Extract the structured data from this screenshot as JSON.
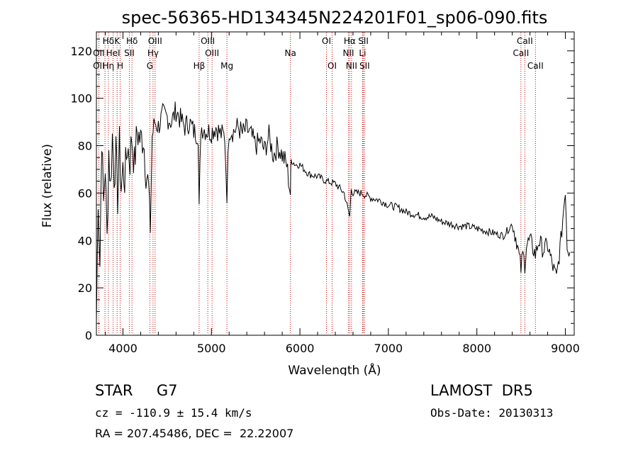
{
  "chart_data": {
    "type": "line",
    "title": "spec-56365-HD134345N224201F01_sp06-090.fits",
    "xlabel": "Wavelength (Å)",
    "ylabel": "Flux (relative)",
    "xlim": [
      3700,
      9100
    ],
    "ylim": [
      0,
      128
    ],
    "xticks": [
      4000,
      5000,
      6000,
      7000,
      8000,
      9000
    ],
    "yticks": [
      0,
      20,
      40,
      60,
      80,
      100,
      120
    ],
    "grid": false,
    "series": [
      {
        "x": [
          3700,
          3720,
          3740,
          3760,
          3780,
          3800,
          3820,
          3840,
          3860,
          3880,
          3900,
          3920,
          3940,
          3960,
          3980,
          4000,
          4020,
          4050,
          4080,
          4100,
          4130,
          4160,
          4200,
          4230,
          4260,
          4290,
          4310,
          4330,
          4360,
          4400,
          4450,
          4500,
          4550,
          4600,
          4650,
          4700,
          4750,
          4800,
          4850,
          4861,
          4880,
          4920,
          4960,
          5000,
          5050,
          5100,
          5150,
          5175,
          5200,
          5250,
          5300,
          5350,
          5400,
          5450,
          5500,
          5550,
          5600,
          5650,
          5700,
          5750,
          5800,
          5850,
          5893,
          5900,
          5950,
          6000,
          6100,
          6200,
          6300,
          6400,
          6500,
          6563,
          6580,
          6600,
          6700,
          6800,
          6900,
          7000,
          7100,
          7200,
          7300,
          7400,
          7500,
          7600,
          7700,
          7800,
          7900,
          8000,
          8100,
          8200,
          8300,
          8400,
          8450,
          8498,
          8520,
          8542,
          8560,
          8600,
          8662,
          8700,
          8750,
          8800,
          8850,
          8900,
          8950,
          9000,
          9020,
          9050
        ],
        "y": [
          5,
          60,
          30,
          85,
          55,
          72,
          40,
          78,
          62,
          84,
          68,
          76,
          58,
          80,
          62,
          70,
          66,
          80,
          74,
          84,
          72,
          86,
          82,
          84,
          70,
          62,
          45,
          84,
          90,
          88,
          93,
          92,
          90,
          95,
          91,
          88,
          90,
          86,
          85,
          52,
          88,
          87,
          86,
          86,
          88,
          85,
          84,
          60,
          87,
          86,
          88,
          85,
          87,
          84,
          80,
          82,
          78,
          84,
          76,
          80,
          76,
          72,
          60,
          74,
          72,
          72,
          68,
          67,
          65,
          64,
          60,
          50,
          62,
          60,
          60,
          58,
          57,
          55,
          54,
          52,
          51,
          50,
          50,
          48,
          47,
          46,
          46,
          45,
          44,
          43,
          42,
          47,
          40,
          28,
          34,
          30,
          38,
          40,
          34,
          40,
          36,
          38,
          30,
          24,
          40,
          62,
          38,
          35
        ]
      }
    ],
    "line_labels": [
      {
        "name": "Hδ",
        "x": 3835,
        "row": 0
      },
      {
        "name": "K",
        "x": 3934,
        "row": 0
      },
      {
        "name": "Hδ",
        "x": 4102,
        "row": 0
      },
      {
        "name": "OIII",
        "x": 4363,
        "row": 0
      },
      {
        "name": "OIII",
        "x": 4959,
        "row": 0
      },
      {
        "name": "OI",
        "x": 6300,
        "row": 0
      },
      {
        "name": "Hα",
        "x": 6563,
        "row": 0
      },
      {
        "name": "SII",
        "x": 6717,
        "row": 0
      },
      {
        "name": "CaII",
        "x": 8542,
        "row": 0
      },
      {
        "name": "OII",
        "x": 3727,
        "row": 1
      },
      {
        "name": "HeI",
        "x": 3889,
        "row": 1
      },
      {
        "name": "SII",
        "x": 4072,
        "row": 1
      },
      {
        "name": "Hγ",
        "x": 4340,
        "row": 1
      },
      {
        "name": "OIII",
        "x": 5007,
        "row": 1
      },
      {
        "name": "Na",
        "x": 5893,
        "row": 1
      },
      {
        "name": "NII",
        "x": 6548,
        "row": 1
      },
      {
        "name": "Li",
        "x": 6708,
        "row": 1
      },
      {
        "name": "CaII",
        "x": 8498,
        "row": 1
      },
      {
        "name": "OII",
        "x": 3727,
        "row": 2
      },
      {
        "name": "Hη",
        "x": 3835,
        "row": 2
      },
      {
        "name": "H",
        "x": 3969,
        "row": 2
      },
      {
        "name": "G",
        "x": 4304,
        "row": 2
      },
      {
        "name": "Hβ",
        "x": 4861,
        "row": 2
      },
      {
        "name": "Mg",
        "x": 5175,
        "row": 2
      },
      {
        "name": "OI",
        "x": 6364,
        "row": 2
      },
      {
        "name": "NII",
        "x": 6583,
        "row": 2
      },
      {
        "name": "SII",
        "x": 6731,
        "row": 2
      },
      {
        "name": "CaII",
        "x": 8662,
        "row": 2
      }
    ],
    "markers": [
      3727,
      3797,
      3835,
      3889,
      3934,
      3969,
      4072,
      4102,
      4304,
      4340,
      4363,
      4861,
      4959,
      5007,
      5175,
      5893,
      6300,
      6364,
      6548,
      6563,
      6583,
      6708,
      6717,
      6731,
      8498,
      8542,
      8662
    ],
    "marker_color": "#cc0000"
  },
  "info": {
    "class_label": "STAR     G7",
    "survey": "LAMOST  DR5",
    "cz": "cz = -110.9 ± 15.4 km/s",
    "obs_date": "Obs-Date: 20130313",
    "radec": "RA = 207.45486, DEC =  22.22007"
  }
}
